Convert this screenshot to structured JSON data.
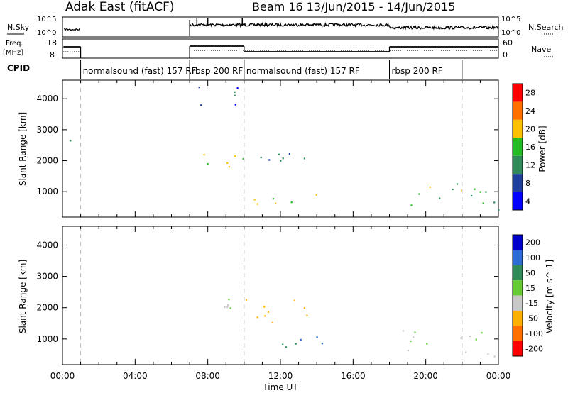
{
  "header": {
    "station": "Adak East (fitACF)",
    "beam_date": "Beam 16  13/Jun/2015 - 14/Jun/2015"
  },
  "labels": {
    "nsky_line1": "N.Sky",
    "nsky_ticks": [
      "10^5",
      "10^0"
    ],
    "nsearch_line1": "N.Search",
    "nsearch_ticks": [
      "10^5",
      "10^0"
    ],
    "freq_line1": "Freq.",
    "freq_line2": "[MHz]",
    "freq_ticks": [
      "18",
      "8"
    ],
    "nave_label": "Nave",
    "nave_ticks": [
      "60",
      "0"
    ],
    "cpid_label": "CPID"
  },
  "cpid_segments": [
    {
      "label": "normalsound (fast) 157 RF",
      "start": 1.0,
      "end": 7.0
    },
    {
      "label": "rbsp 200 RF",
      "start": 7.0,
      "end": 10.0
    },
    {
      "label": "normalsound (fast) 157 RF",
      "start": 10.0,
      "end": 18.0
    },
    {
      "label": "rbsp 200 RF",
      "start": 18.0,
      "end": 22.0
    }
  ],
  "chart_data": [
    {
      "type": "heatmap",
      "name": "power",
      "ylabel": "Slant Range [km]",
      "xlabel": "Time UT",
      "xlim": [
        0,
        24
      ],
      "ylim": [
        180,
        4600
      ],
      "yticks": [
        1000,
        2000,
        3000,
        4000
      ],
      "colorbar_label": "Power [dB]",
      "colorbar_ticks": [
        "28",
        "24",
        "20",
        "16",
        "12",
        "8",
        "4"
      ],
      "colorbar_colors": [
        "#ff0000",
        "#ff7000",
        "#ffc000",
        "#22bb22",
        "#2e8b57",
        "#1f3f9f",
        "#0000ff"
      ],
      "regions": [
        {
          "x": [
            0.2,
            1.0
          ],
          "y": [
            2200,
            2750
          ],
          "value": 8
        },
        {
          "x": [
            7.0,
            10.0
          ],
          "y": [
            1600,
            2300
          ],
          "value": 18
        },
        {
          "x": [
            7.0,
            10.0
          ],
          "y": [
            3800,
            4500
          ],
          "value": 8
        },
        {
          "x": [
            10.0,
            13.5
          ],
          "y": [
            1700,
            2400
          ],
          "value": 12
        },
        {
          "x": [
            10.0,
            14.5
          ],
          "y": [
            600,
            1100
          ],
          "value": 20
        },
        {
          "x": [
            18.5,
            24.0
          ],
          "y": [
            400,
            1300
          ],
          "value": 16
        }
      ]
    },
    {
      "type": "heatmap",
      "name": "velocity",
      "ylabel": "Slant Range [km]",
      "xlabel": "Time UT",
      "xlim": [
        0,
        24
      ],
      "ylim": [
        180,
        4600
      ],
      "yticks": [
        1000,
        2000,
        3000,
        4000
      ],
      "xticks": [
        "00:00",
        "04:00",
        "08:00",
        "12:00",
        "16:00",
        "20:00",
        "00:00"
      ],
      "colorbar_label": "Velocity [m s^-1]",
      "colorbar_ticks": [
        "200",
        "100",
        "50",
        "15",
        "-15",
        "-50",
        "-100",
        "-200"
      ],
      "colorbar_colors": [
        "#0000cc",
        "#2b6bd6",
        "#2e8b57",
        "#66cc33",
        "#c8c8c8",
        "#ffb000",
        "#ff7000",
        "#ff0000"
      ],
      "regions": [
        {
          "x": [
            7.0,
            10.0
          ],
          "y": [
            1700,
            2300
          ],
          "value": 0
        },
        {
          "x": [
            10.0,
            13.5
          ],
          "y": [
            1500,
            2400
          ],
          "value": -40
        },
        {
          "x": [
            10.0,
            14.5
          ],
          "y": [
            600,
            900
          ],
          "value": 40
        },
        {
          "x": [
            13.0,
            14.5
          ],
          "y": [
            800,
            1500
          ],
          "value": 80
        },
        {
          "x": [
            18.5,
            24.0
          ],
          "y": [
            400,
            1300
          ],
          "value": 0
        }
      ]
    }
  ]
}
